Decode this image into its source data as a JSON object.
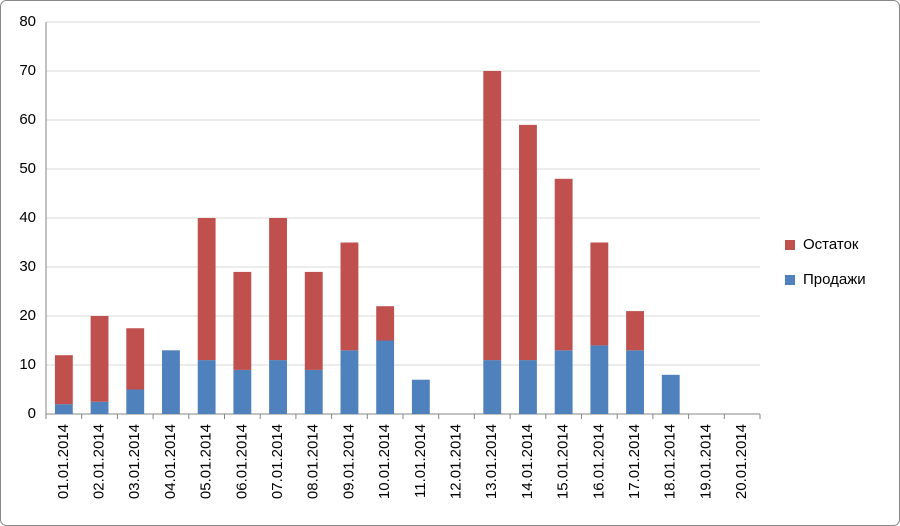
{
  "chart_data": {
    "type": "stacked-bar",
    "categories": [
      "01.01.2014",
      "02.01.2014",
      "03.01.2014",
      "04.01.2014",
      "05.01.2014",
      "06.01.2014",
      "07.01.2014",
      "08.01.2014",
      "09.01.2014",
      "10.01.2014",
      "11.01.2014",
      "12.01.2014",
      "13.01.2014",
      "14.01.2014",
      "15.01.2014",
      "16.01.2014",
      "17.01.2014",
      "18.01.2014",
      "19.01.2014",
      "20.01.2014"
    ],
    "series": [
      {
        "name": "Продажи",
        "color": "#4f81bd",
        "values": [
          2,
          2.5,
          5,
          13,
          11,
          9,
          11,
          9,
          13,
          15,
          7,
          0,
          11,
          11,
          13,
          14,
          13,
          8,
          0,
          0
        ]
      },
      {
        "name": "Остаток",
        "color": "#c0504d",
        "values": [
          10,
          17.5,
          12.5,
          0,
          29,
          20,
          29,
          20,
          22,
          7,
          0,
          0,
          59,
          48,
          35,
          21,
          8,
          0,
          0,
          0
        ]
      }
    ],
    "ylim": [
      0,
      80
    ],
    "yticks": [
      0,
      10,
      20,
      30,
      40,
      50,
      60,
      70,
      80
    ],
    "grid": true,
    "legend": "right"
  }
}
